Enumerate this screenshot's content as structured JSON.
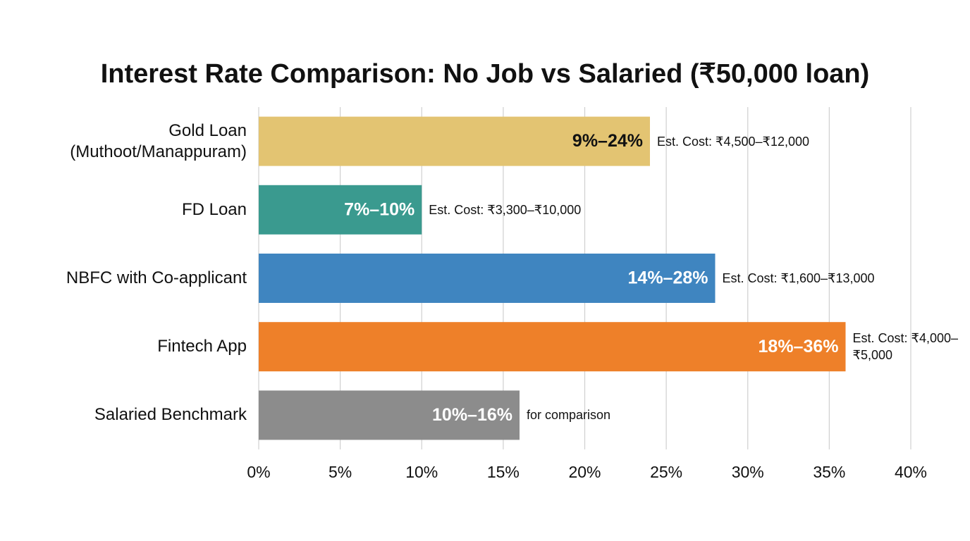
{
  "chart_data": {
    "type": "bar",
    "orientation": "horizontal",
    "title": "Interest Rate Comparison: No Job vs Salaried (₹50,000 loan)",
    "categories": [
      "Gold Loan (Muthoot/Manappuram)",
      "FD Loan",
      "NBFC with Co-applicant",
      "Fintech App",
      "Salaried Benchmark"
    ],
    "values": [
      24,
      10,
      28,
      36,
      16
    ],
    "value_labels": [
      "9%–24%",
      "7%–10%",
      "14%–28%",
      "18%–36%",
      "10%–16%"
    ],
    "colors": [
      "#e3c472",
      "#3a9a8f",
      "#3f85c0",
      "#ee8029",
      "#8c8c8c"
    ],
    "value_label_colors": [
      "#111111",
      "#ffffff",
      "#ffffff",
      "#ffffff",
      "#ffffff"
    ],
    "annotations": [
      "Est. Cost: ₹4,500–₹12,000",
      "Est. Cost: ₹3,300–₹10,000",
      "Est. Cost: ₹1,600–₹13,000",
      "Est. Cost: ₹4,000–₹5,000",
      "for comparison"
    ],
    "xlim": [
      0,
      40
    ],
    "xticks": [
      {
        "value": 0,
        "label": "0%"
      },
      {
        "value": 5,
        "label": "5%"
      },
      {
        "value": 10,
        "label": "10%"
      },
      {
        "value": 15,
        "label": "15%"
      },
      {
        "value": 20,
        "label": "20%"
      },
      {
        "value": 25,
        "label": "25%"
      },
      {
        "value": 30,
        "label": "30%"
      },
      {
        "value": 35,
        "label": "35%"
      },
      {
        "value": 40,
        "label": "40%"
      }
    ],
    "grid": true
  }
}
